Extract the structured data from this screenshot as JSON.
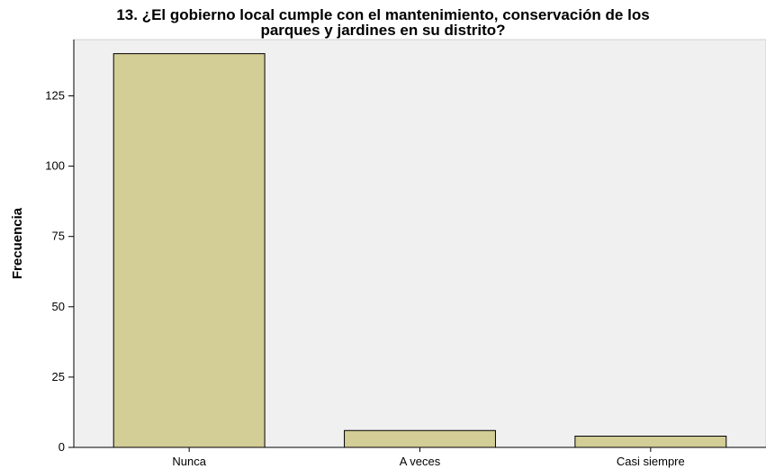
{
  "chart_data": {
    "type": "bar",
    "title_line1": "13. ¿El gobierno local cumple con el mantenimiento, conservación de los",
    "title_line2": "parques y jardines  en su distrito?",
    "xlabel": "",
    "ylabel": "Frecuencia",
    "categories": [
      "Nunca",
      "A veces",
      "Casi siempre"
    ],
    "values": [
      140,
      6,
      4
    ],
    "ylim": [
      0,
      145
    ],
    "yticks": [
      0,
      25,
      50,
      75,
      100,
      125
    ],
    "grid": false,
    "colors": {
      "bar_fill": "#d3cd96",
      "bar_stroke": "#000000",
      "plot_background": "#f0f0f0",
      "axis": "#000000"
    }
  }
}
